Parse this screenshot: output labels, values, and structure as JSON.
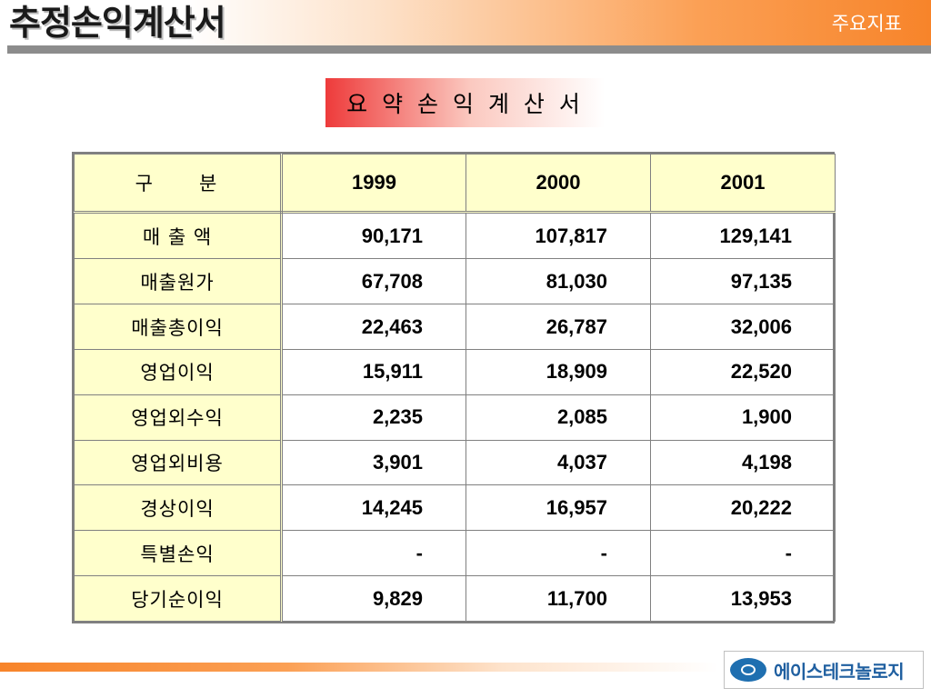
{
  "header": {
    "title": "추정손익계산서",
    "section": "주요지표"
  },
  "subtitle": "요 약 손 익 계 산 서",
  "table": {
    "label_header": "구　　분",
    "years": [
      "1999",
      "2000",
      "2001"
    ],
    "rows": [
      {
        "label": "매 출 액",
        "values": [
          "90,171",
          "107,817",
          "129,141"
        ]
      },
      {
        "label": "매출원가",
        "values": [
          "67,708",
          "81,030",
          "97,135"
        ]
      },
      {
        "label": "매출총이익",
        "values": [
          "22,463",
          "26,787",
          "32,006"
        ]
      },
      {
        "label": "영업이익",
        "values": [
          "15,911",
          "18,909",
          "22,520"
        ]
      },
      {
        "label": "영업외수익",
        "values": [
          "2,235",
          "2,085",
          "1,900"
        ]
      },
      {
        "label": "영업외비용",
        "values": [
          "3,901",
          "4,037",
          "4,198"
        ]
      },
      {
        "label": "경상이익",
        "values": [
          "14,245",
          "16,957",
          "20,222"
        ]
      },
      {
        "label": "특별손익",
        "values": [
          "-",
          "-",
          "-"
        ]
      },
      {
        "label": "당기순이익",
        "values": [
          "9,829",
          "11,700",
          "13,953"
        ]
      }
    ]
  },
  "footer": {
    "logo_text": "에이스테크놀로지",
    "logo_icon": "company-emblem-icon"
  },
  "colors": {
    "accent_orange": "#f7842a",
    "title_box_red": "#ee3b3b",
    "table_header_bg": "#ffffcc",
    "logo_blue": "#1f6fb0"
  }
}
